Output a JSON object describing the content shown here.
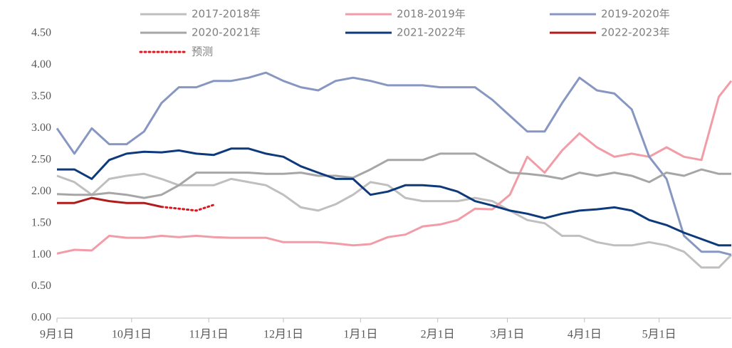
{
  "chart_data": {
    "type": "line",
    "x": [
      0,
      7,
      14,
      21,
      28,
      35,
      42,
      49,
      56,
      63,
      70,
      77,
      84,
      91,
      98,
      105,
      112,
      119,
      126,
      133,
      140,
      147,
      154,
      161,
      168,
      175,
      182,
      189,
      196,
      203,
      210,
      217,
      224,
      231,
      238,
      245,
      252,
      259,
      266,
      271
    ],
    "xlim": [
      0,
      271
    ],
    "xticks": [
      {
        "value": 0,
        "label": "9月1日"
      },
      {
        "value": 30,
        "label": "10月1日"
      },
      {
        "value": 61,
        "label": "11月1日"
      },
      {
        "value": 91,
        "label": "12月1日"
      },
      {
        "value": 122,
        "label": "1月1日"
      },
      {
        "value": 153,
        "label": "2月1日"
      },
      {
        "value": 181,
        "label": "3月1日"
      },
      {
        "value": 212,
        "label": "4月1日"
      },
      {
        "value": 242,
        "label": "5月1日"
      }
    ],
    "ylim": [
      0,
      4.5
    ],
    "yticks": [
      {
        "value": 0,
        "label": "0.00"
      },
      {
        "value": 0.5,
        "label": "0.50"
      },
      {
        "value": 1,
        "label": "1.00"
      },
      {
        "value": 1.5,
        "label": "1.50"
      },
      {
        "value": 2,
        "label": "2.00"
      },
      {
        "value": 2.5,
        "label": "2.50"
      },
      {
        "value": 3,
        "label": "3.00"
      },
      {
        "value": 3.5,
        "label": "3.50"
      },
      {
        "value": 4,
        "label": "4.00"
      },
      {
        "value": 4.5,
        "label": "4.50"
      }
    ],
    "grid": false,
    "legend": "top",
    "series": [
      {
        "name": "2017-2018年",
        "color": "#bfbfbf",
        "values": [
          2.25,
          2.15,
          1.95,
          2.2,
          2.25,
          2.28,
          2.2,
          2.1,
          2.1,
          2.1,
          2.2,
          2.15,
          2.1,
          1.95,
          1.75,
          1.7,
          1.8,
          1.95,
          2.15,
          2.1,
          1.9,
          1.85,
          1.85,
          1.85,
          1.9,
          1.85,
          1.7,
          1.55,
          1.5,
          1.3,
          1.3,
          1.2,
          1.15,
          1.15,
          1.2,
          1.15,
          1.05,
          0.8,
          0.8,
          1.0
        ]
      },
      {
        "name": "2018-2019年",
        "color": "#f19ca6",
        "values": [
          1.02,
          1.08,
          1.07,
          1.3,
          1.27,
          1.27,
          1.3,
          1.28,
          1.3,
          1.28,
          1.27,
          1.27,
          1.27,
          1.2,
          1.2,
          1.2,
          1.18,
          1.15,
          1.17,
          1.28,
          1.32,
          1.45,
          1.48,
          1.55,
          1.73,
          1.72,
          1.95,
          2.55,
          2.3,
          2.65,
          2.92,
          2.7,
          2.55,
          2.6,
          2.55,
          2.7,
          2.55,
          2.5,
          3.5,
          3.75
        ]
      },
      {
        "name": "2019-2020年",
        "color": "#8797c2",
        "values": [
          3.0,
          2.6,
          3.0,
          2.75,
          2.75,
          2.95,
          3.4,
          3.65,
          3.65,
          3.75,
          3.75,
          3.8,
          3.88,
          3.75,
          3.65,
          3.6,
          3.75,
          3.8,
          3.75,
          3.68,
          3.68,
          3.68,
          3.65,
          3.65,
          3.65,
          3.45,
          3.2,
          2.95,
          2.95,
          3.4,
          3.8,
          3.6,
          3.55,
          3.3,
          2.55,
          2.2,
          1.3,
          1.05,
          1.05,
          1.0
        ]
      },
      {
        "name": "2020-2021年",
        "color": "#a6a6a6",
        "values": [
          1.96,
          1.95,
          1.95,
          1.98,
          1.95,
          1.9,
          1.95,
          2.1,
          2.3,
          2.3,
          2.3,
          2.3,
          2.28,
          2.28,
          2.3,
          2.25,
          2.25,
          2.22,
          2.35,
          2.5,
          2.5,
          2.5,
          2.6,
          2.6,
          2.6,
          2.45,
          2.3,
          2.28,
          2.25,
          2.2,
          2.3,
          2.25,
          2.3,
          2.25,
          2.15,
          2.3,
          2.25,
          2.35,
          2.28,
          2.28
        ]
      },
      {
        "name": "2021-2022年",
        "color": "#0e3a7c",
        "values": [
          2.35,
          2.35,
          2.2,
          2.5,
          2.6,
          2.63,
          2.62,
          2.65,
          2.6,
          2.58,
          2.68,
          2.68,
          2.6,
          2.55,
          2.4,
          2.3,
          2.2,
          2.2,
          1.95,
          2.0,
          2.1,
          2.1,
          2.08,
          2.0,
          1.85,
          1.78,
          1.7,
          1.65,
          1.58,
          1.65,
          1.7,
          1.72,
          1.75,
          1.7,
          1.55,
          1.47,
          1.35,
          1.25,
          1.15,
          1.15
        ]
      },
      {
        "name": "2022-2023年",
        "color": "#ae1c1c",
        "values": [
          1.82,
          1.82,
          1.9,
          1.85,
          1.82,
          1.82,
          1.76,
          null,
          null,
          null,
          null,
          null,
          null,
          null,
          null,
          null,
          null,
          null,
          null,
          null,
          null,
          null,
          null,
          null,
          null,
          null,
          null,
          null,
          null,
          null,
          null,
          null,
          null,
          null,
          null,
          null,
          null,
          null,
          null,
          null
        ]
      },
      {
        "name": "预测",
        "color": "#e0141e",
        "line_style": "dotted",
        "values": [
          null,
          null,
          null,
          null,
          null,
          null,
          1.76,
          1.73,
          1.7,
          1.79,
          null,
          null,
          null,
          null,
          null,
          null,
          null,
          null,
          null,
          null,
          null,
          null,
          null,
          null,
          null,
          null,
          null,
          null,
          null,
          null,
          null,
          null,
          null,
          null,
          null,
          null,
          null,
          null,
          null,
          null
        ]
      }
    ]
  }
}
